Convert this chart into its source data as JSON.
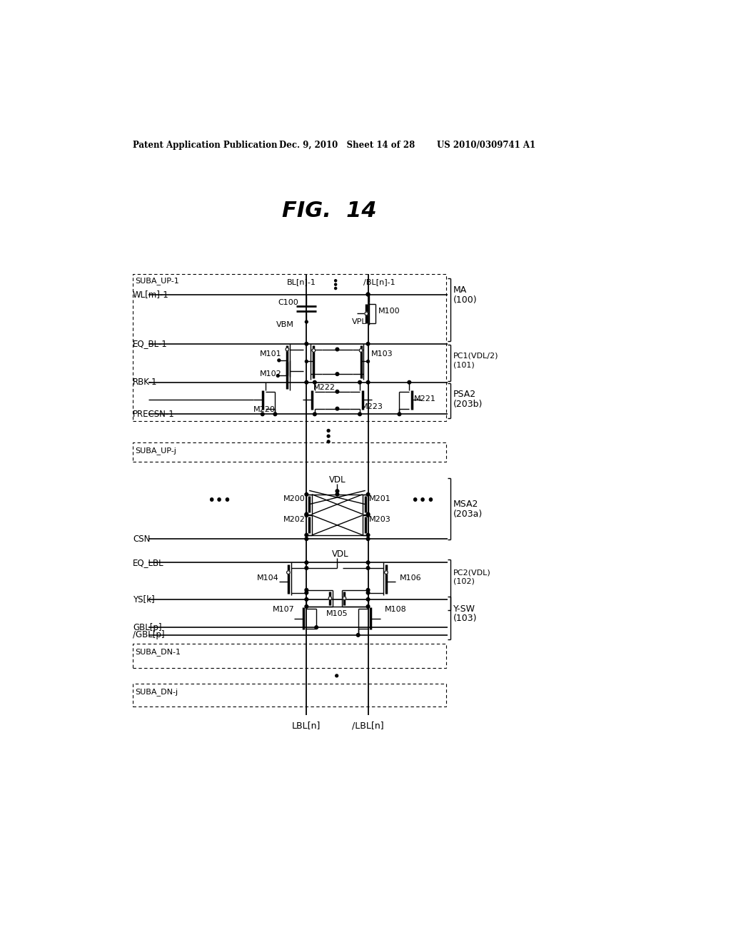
{
  "bg_color": "#ffffff",
  "header_left": "Patent Application Publication",
  "header_mid": "Dec. 9, 2010   Sheet 14 of 28",
  "header_right": "US 2010/0309741 A1",
  "fig_title": "FIG.  14",
  "labels": {
    "suba_up1": "SUBA_UP-1",
    "suba_upj": "SUBA_UP-j",
    "suba_dn1": "SUBA_DN-1",
    "suba_dnj": "SUBA_DN-j",
    "wlm": "WL[m]-1",
    "eq_bl": "EQ_BL-1",
    "rbk": "RBK-1",
    "precsn": "PRECSN-1",
    "csn": "CSN",
    "eq_lbl": "EQ_LBL",
    "ysk": "YS[k]",
    "gbl": "GBL[p]",
    "ngbl": "/GBL[p]",
    "bl": "BL[n]-1",
    "nbl": "/BL[n]-1",
    "lbl": "LBL[n]",
    "nlbl": "/LBL[n]",
    "vdl": "VDL",
    "vbm": "VBM",
    "vpl": "VPL",
    "ma": "MA",
    "ma_num": "(100)",
    "pc1": "PC1(VDL/2)",
    "pc1_num": "(101)",
    "psa2": "PSA2",
    "psa2_num": "(203b)",
    "msa2": "MSA2",
    "msa2_num": "(203a)",
    "pc2": "PC2(VDL)",
    "pc2_num": "(102)",
    "ysw": "Y-SW",
    "ysw_num": "(103)",
    "c100": "C100",
    "m100": "M100",
    "m101": "M101",
    "m102": "M102",
    "m103": "M103",
    "m104": "M104",
    "m105": "M105",
    "m106": "M106",
    "m107": "M107",
    "m108": "M108",
    "m200": "M200",
    "m201": "M201",
    "m202": "M202",
    "m203": "M203",
    "m220": "M220",
    "m221": "M221",
    "m222": "M222",
    "m223": "M223"
  }
}
